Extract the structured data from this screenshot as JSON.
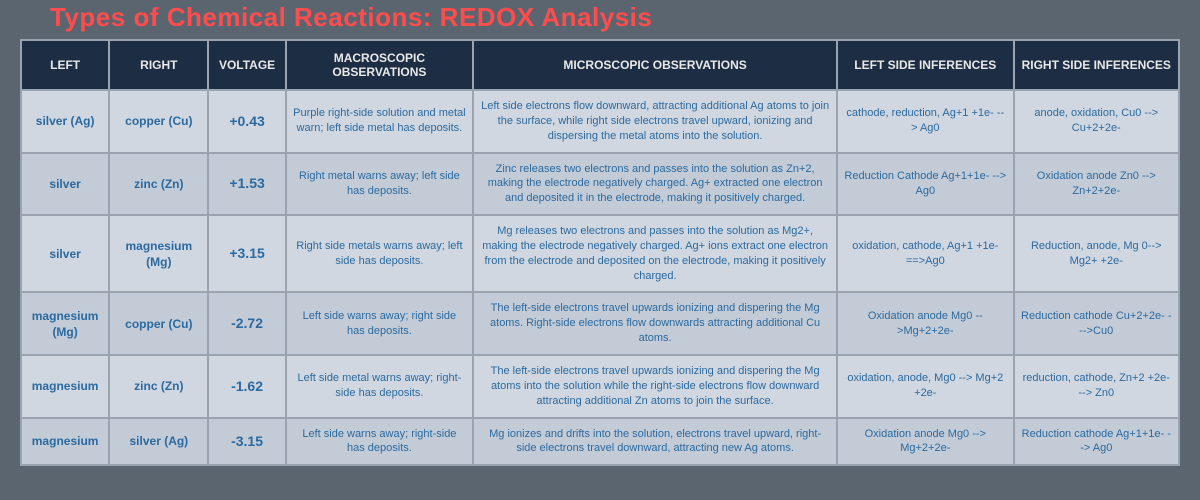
{
  "title": "Types of Chemical Reactions: REDOX Analysis",
  "colors": {
    "title": "#ff4d4d",
    "header_bg": "#1d2d44",
    "header_text": "#e8e8e8",
    "row_odd_bg": "#d1d7e0",
    "row_even_bg": "#c3cbd6",
    "cell_text": "#2a6aa0",
    "border": "#9aa4b0",
    "page_bg": "#5a6570"
  },
  "columns": [
    "LEFT",
    "RIGHT",
    "VOLTAGE",
    "MACROSCOPIC OBSERVATIONS",
    "MICROSCOPIC OBSERVATIONS",
    "LEFT SIDE INFERENCES",
    "RIGHT SIDE INFERENCES"
  ],
  "rows": [
    {
      "left": "silver (Ag)",
      "right": "copper (Cu)",
      "voltage": "+0.43",
      "macro": "Purple right-side solution and metal warn; left side metal has deposits.",
      "micro": "Left side electrons flow downward, attracting additional Ag atoms to join the surface, while right side electrons travel upward, ionizing and dispersing the metal atoms into the solution.",
      "li": "cathode, reduction, Ag+1 +1e- --> Ag0",
      "ri": "anode, oxidation, Cu0 --> Cu+2+2e-"
    },
    {
      "left": "silver",
      "right": "zinc (Zn)",
      "voltage": "+1.53",
      "macro": "Right metal warns away; left side has deposits.",
      "micro": "Zinc releases two electrons and passes into the solution as Zn+2, making the electrode negatively charged. Ag+ extracted one electron and deposited it in the electrode, making it positively charged.",
      "li": "Reduction Cathode Ag+1+1e- --> Ag0",
      "ri": "Oxidation anode Zn0 --> Zn+2+2e-"
    },
    {
      "left": "silver",
      "right": "magnesium (Mg)",
      "voltage": "+3.15",
      "macro": "Right side metals warns away; left side has deposits.",
      "micro": "Mg releases two electrons and passes into the solution as Mg2+, making the electrode negatively charged. Ag+ ions extract one electron from the electrode and deposited on the electrode, making it positively charged.",
      "li": "oxidation, cathode, Ag+1 +1e- ==>Ag0",
      "ri": "Reduction, anode, Mg 0--> Mg2+ +2e-"
    },
    {
      "left": "magnesium (Mg)",
      "right": "copper (Cu)",
      "voltage": "-2.72",
      "macro": "Left side warns away; right side has deposits.",
      "micro": "The left-side electrons travel upwards ionizing and dispering the Mg atoms. Right-side electrons flow downwards attracting additional Cu atoms.",
      "li": "Oxidation anode Mg0 -->Mg+2+2e-",
      "ri": "Reduction cathode Cu+2+2e- --->Cu0"
    },
    {
      "left": "magnesium",
      "right": "zinc (Zn)",
      "voltage": "-1.62",
      "macro": "Left side metal warns away; right-side has deposits.",
      "micro": "The left-side electrons travel upwards ionizing and dispering the Mg atoms into the solution while the right-side electrons flow downward attracting additional Zn atoms to join the surface.",
      "li": "oxidation, anode, Mg0 --> Mg+2 +2e-",
      "ri": "reduction, cathode, Zn+2 +2e- --> Zn0"
    },
    {
      "left": "magnesium",
      "right": "silver (Ag)",
      "voltage": "-3.15",
      "macro": "Left side warns away; right-side has deposits.",
      "micro": "Mg ionizes and drifts into the solution, electrons travel upward, right-side electrons travel downward, attracting new Ag atoms.",
      "li": "Oxidation anode Mg0 --> Mg+2+2e-",
      "ri": "Reduction cathode Ag+1+1e- --> Ag0"
    }
  ]
}
